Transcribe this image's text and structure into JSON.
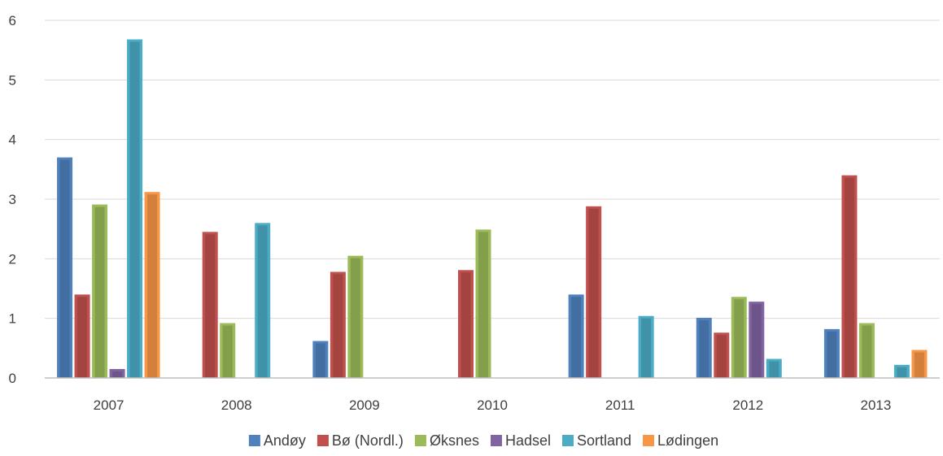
{
  "chart_data": {
    "type": "bar",
    "categories": [
      "2007",
      "2008",
      "2009",
      "2010",
      "2011",
      "2012",
      "2013"
    ],
    "series": [
      {
        "name": "Andøy",
        "color": "#4f81bd",
        "values": [
          3.7,
          0,
          0.62,
          0,
          1.4,
          1.01,
          0.82
        ]
      },
      {
        "name": "Bø (Nordl.)",
        "color": "#c0504d",
        "values": [
          1.4,
          2.45,
          1.78,
          1.81,
          2.88,
          0.76,
          3.4
        ]
      },
      {
        "name": "Øksnes",
        "color": "#9bbb59",
        "values": [
          2.91,
          0.92,
          2.05,
          2.49,
          0,
          1.36,
          0.92
        ]
      },
      {
        "name": "Hadsel",
        "color": "#8064a2",
        "values": [
          0.15,
          0,
          0,
          0,
          0,
          1.28,
          0
        ]
      },
      {
        "name": "Sortland",
        "color": "#4bacc6",
        "values": [
          5.68,
          2.6,
          0,
          0,
          1.04,
          0.32,
          0.22
        ]
      },
      {
        "name": "Lødingen",
        "color": "#f79646",
        "values": [
          3.12,
          0,
          0,
          0,
          0,
          0,
          0.47
        ]
      }
    ],
    "yticks": [
      "0",
      "1",
      "2",
      "3",
      "4",
      "5",
      "6"
    ],
    "ylim": [
      0,
      6
    ],
    "grid": true,
    "legend": "bottom",
    "title": "",
    "xlabel": "",
    "ylabel": ""
  }
}
